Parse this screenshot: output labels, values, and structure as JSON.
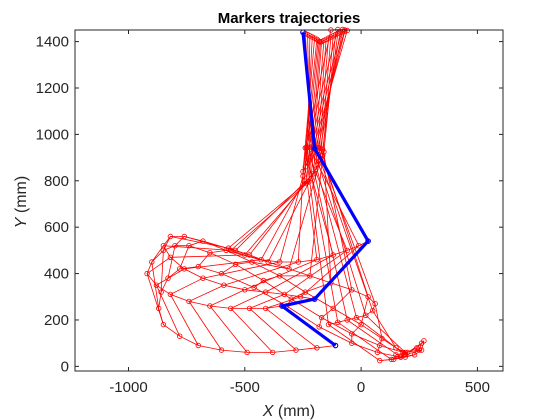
{
  "chart_data": {
    "type": "line",
    "title": "Markers trajectories",
    "xlabel_var": "X",
    "xlabel_unit": " (mm)",
    "ylabel_var": "Y",
    "ylabel_unit": " (mm)",
    "xlim": [
      -1230,
      610
    ],
    "ylim": [
      -20,
      1450
    ],
    "xticks": [
      -1000,
      -500,
      0,
      500
    ],
    "yticks": [
      0,
      200,
      400,
      600,
      800,
      1000,
      1200,
      1400
    ],
    "xtick_labels": [
      "-1000",
      "-500",
      "0",
      "500"
    ],
    "ytick_labels": [
      "0",
      "200",
      "400",
      "600",
      "800",
      "1000",
      "1200",
      "1400"
    ],
    "grid": false,
    "colors": {
      "trajectory": "#ff0000",
      "highlight": "#0000ff",
      "axis": "#262626"
    },
    "frames": [
      [
        [
          -250,
          1440
        ],
        [
          -200,
          940
        ],
        [
          30,
          540
        ],
        [
          -200,
          290
        ],
        [
          -340,
          260
        ],
        [
          -110,
          90
        ]
      ],
      [
        [
          -240,
          1435
        ],
        [
          -210,
          920
        ],
        [
          -10,
          520
        ],
        [
          -260,
          300
        ],
        [
          -410,
          250
        ],
        [
          -190,
          80
        ]
      ],
      [
        [
          -230,
          1430
        ],
        [
          -220,
          900
        ],
        [
          -60,
          500
        ],
        [
          -330,
          310
        ],
        [
          -480,
          250
        ],
        [
          -280,
          70
        ]
      ],
      [
        [
          -220,
          1425
        ],
        [
          -230,
          880
        ],
        [
          -120,
          480
        ],
        [
          -410,
          320
        ],
        [
          -560,
          250
        ],
        [
          -380,
          60
        ]
      ],
      [
        [
          -210,
          1420
        ],
        [
          -240,
          860
        ],
        [
          -190,
          460
        ],
        [
          -500,
          330
        ],
        [
          -650,
          260
        ],
        [
          -490,
          60
        ]
      ],
      [
        [
          -200,
          1415
        ],
        [
          -250,
          840
        ],
        [
          -270,
          450
        ],
        [
          -590,
          350
        ],
        [
          -740,
          280
        ],
        [
          -600,
          70
        ]
      ],
      [
        [
          -190,
          1410
        ],
        [
          -250,
          820
        ],
        [
          -350,
          450
        ],
        [
          -680,
          380
        ],
        [
          -820,
          310
        ],
        [
          -700,
          90
        ]
      ],
      [
        [
          -185,
          1405
        ],
        [
          -245,
          800
        ],
        [
          -430,
          460
        ],
        [
          -760,
          420
        ],
        [
          -880,
          350
        ],
        [
          -780,
          130
        ]
      ],
      [
        [
          -180,
          1400
        ],
        [
          -235,
          790
        ],
        [
          -500,
          480
        ],
        [
          -820,
          470
        ],
        [
          -920,
          400
        ],
        [
          -850,
          180
        ]
      ],
      [
        [
          -175,
          1398
        ],
        [
          -225,
          795
        ],
        [
          -560,
          500
        ],
        [
          -850,
          520
        ],
        [
          -900,
          450
        ],
        [
          -870,
          250
        ]
      ],
      [
        [
          -170,
          1400
        ],
        [
          -215,
          810
        ],
        [
          -570,
          510
        ],
        [
          -820,
          560
        ],
        [
          -850,
          500
        ],
        [
          -860,
          320
        ]
      ],
      [
        [
          -160,
          1405
        ],
        [
          -205,
          830
        ],
        [
          -540,
          500
        ],
        [
          -760,
          560
        ],
        [
          -800,
          520
        ],
        [
          -830,
          380
        ]
      ],
      [
        [
          -150,
          1410
        ],
        [
          -195,
          850
        ],
        [
          -480,
          480
        ],
        [
          -680,
          540
        ],
        [
          -740,
          520
        ],
        [
          -780,
          420
        ]
      ],
      [
        [
          -140,
          1415
        ],
        [
          -185,
          870
        ],
        [
          -400,
          450
        ],
        [
          -580,
          500
        ],
        [
          -650,
          490
        ],
        [
          -700,
          430
        ]
      ],
      [
        [
          -130,
          1420
        ],
        [
          -175,
          890
        ],
        [
          -310,
          420
        ],
        [
          -470,
          450
        ],
        [
          -540,
          440
        ],
        [
          -600,
          400
        ]
      ],
      [
        [
          -120,
          1425
        ],
        [
          -165,
          910
        ],
        [
          -220,
          390
        ],
        [
          -350,
          390
        ],
        [
          -420,
          370
        ],
        [
          -460,
          340
        ]
      ],
      [
        [
          -110,
          1430
        ],
        [
          -160,
          925
        ],
        [
          -130,
          360
        ],
        [
          -240,
          320
        ],
        [
          -300,
          290
        ],
        [
          -320,
          260
        ]
      ],
      [
        [
          -100,
          1435
        ],
        [
          -165,
          935
        ],
        [
          -40,
          330
        ],
        [
          -120,
          250
        ],
        [
          -170,
          210
        ],
        [
          -180,
          170
        ]
      ],
      [
        [
          -90,
          1440
        ],
        [
          -175,
          940
        ],
        [
          30,
          300
        ],
        [
          0,
          180
        ],
        [
          -40,
          140
        ],
        [
          -40,
          100
        ]
      ],
      [
        [
          -80,
          1442
        ],
        [
          -185,
          942
        ],
        [
          60,
          270
        ],
        [
          90,
          120
        ],
        [
          80,
          90
        ],
        [
          70,
          60
        ]
      ],
      [
        [
          -70,
          1445
        ],
        [
          -195,
          943
        ],
        [
          50,
          240
        ],
        [
          150,
          80
        ],
        [
          180,
          60
        ],
        [
          170,
          40
        ]
      ],
      [
        [
          -60,
          1448
        ],
        [
          -205,
          945
        ],
        [
          20,
          220
        ],
        [
          190,
          60
        ],
        [
          250,
          70
        ],
        [
          260,
          100
        ]
      ],
      [
        [
          -70,
          1450
        ],
        [
          -215,
          945
        ],
        [
          -20,
          210
        ],
        [
          190,
          50
        ],
        [
          260,
          70
        ],
        [
          270,
          110
        ]
      ],
      [
        [
          -80,
          1452
        ],
        [
          -225,
          944
        ],
        [
          -60,
          200
        ],
        [
          170,
          40
        ],
        [
          230,
          50
        ],
        [
          240,
          80
        ]
      ],
      [
        [
          -100,
          1452
        ],
        [
          -235,
          943
        ],
        [
          -100,
          190
        ],
        [
          130,
          30
        ],
        [
          190,
          40
        ],
        [
          200,
          60
        ]
      ],
      [
        [
          -130,
          1450
        ],
        [
          -240,
          942
        ],
        [
          -140,
          180
        ],
        [
          80,
          25
        ],
        [
          140,
          30
        ],
        [
          150,
          50
        ]
      ]
    ],
    "highlight_frame": 0
  }
}
